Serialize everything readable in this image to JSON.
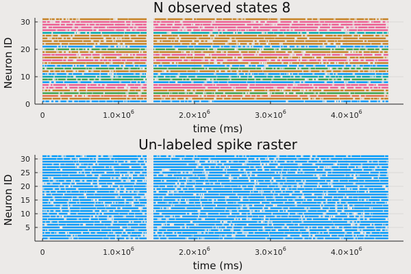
{
  "chart_data": [
    {
      "type": "scatter",
      "subtype": "spike_raster",
      "title": "N observed states 8",
      "xlabel": "time (ms)",
      "ylabel": "Neuron ID",
      "xlim": [
        -100000,
        4750000
      ],
      "ylim": [
        0,
        31.5
      ],
      "xticks": [
        0,
        1000000,
        2000000,
        3000000,
        4000000
      ],
      "xtick_labels": [
        {
          "base": "0",
          "exp": ""
        },
        {
          "base": "1.0×10",
          "exp": "6"
        },
        {
          "base": "2.0×10",
          "exp": "6"
        },
        {
          "base": "3.0×10",
          "exp": "6"
        },
        {
          "base": "4.0×10",
          "exp": "6"
        }
      ],
      "yticks": [
        0,
        10,
        20,
        30
      ],
      "ytick_labels": [
        "0",
        "10",
        "20",
        "30"
      ],
      "grid": true,
      "legend": "none",
      "neuron_ids": [
        1,
        2,
        3,
        4,
        5,
        6,
        7,
        8,
        9,
        10,
        11,
        12,
        13,
        14,
        15,
        16,
        17,
        18,
        19,
        20,
        21,
        22,
        23,
        24,
        25,
        26,
        27,
        28,
        29,
        30,
        31
      ],
      "time_segments": [
        [
          0,
          1370000
        ],
        [
          1460000,
          4550000
        ]
      ],
      "state_colors": [
        "#009af9",
        "#e26f46",
        "#3da44d",
        "#c271d2",
        "#ac8e18",
        "#00a9ad",
        "#ed5e93",
        "#c68225"
      ],
      "neuron_state_colors": [
        "#009af9",
        "#c68225",
        "#e26f46",
        "#3da44d",
        "#c68225",
        "#ed5e93",
        "#ed5e93",
        "#009af9",
        "#3da44d",
        "#00a9ad",
        "#009af9",
        "#c68225",
        "#3da44d",
        "#009af9",
        "#c68225",
        "#ed5e93",
        "#c68225",
        "#ed5e93",
        "#c68225",
        "#3da44d",
        "#009af9",
        "#c68225",
        "#c68225",
        "#c68225",
        "#c68225",
        "#00a9ad",
        "#ed5e93",
        "#ed5e93",
        "#ed5e93",
        "#ed5e93",
        "#c68225"
      ]
    },
    {
      "type": "scatter",
      "subtype": "spike_raster",
      "title": "Un-labeled spike raster",
      "xlabel": "time (ms)",
      "ylabel": "Neuron ID",
      "xlim": [
        -100000,
        4750000
      ],
      "ylim": [
        0,
        31.5
      ],
      "xticks": [
        0,
        1000000,
        2000000,
        3000000,
        4000000
      ],
      "xtick_labels": [
        {
          "base": "0",
          "exp": ""
        },
        {
          "base": "1.0×10",
          "exp": "6"
        },
        {
          "base": "2.0×10",
          "exp": "6"
        },
        {
          "base": "3.0×10",
          "exp": "6"
        },
        {
          "base": "4.0×10",
          "exp": "6"
        }
      ],
      "yticks": [
        5,
        10,
        15,
        20,
        25,
        30
      ],
      "ytick_labels": [
        "5",
        "10",
        "15",
        "20",
        "25",
        "30"
      ],
      "grid": true,
      "legend": "none",
      "neuron_ids": [
        1,
        2,
        3,
        4,
        5,
        6,
        7,
        8,
        9,
        10,
        11,
        12,
        13,
        14,
        15,
        16,
        17,
        18,
        19,
        20,
        21,
        22,
        23,
        24,
        25,
        26,
        27,
        28,
        29,
        30,
        31
      ],
      "time_segments": [
        [
          0,
          1370000
        ],
        [
          1460000,
          4550000
        ]
      ],
      "series_color": "#009af9"
    }
  ]
}
